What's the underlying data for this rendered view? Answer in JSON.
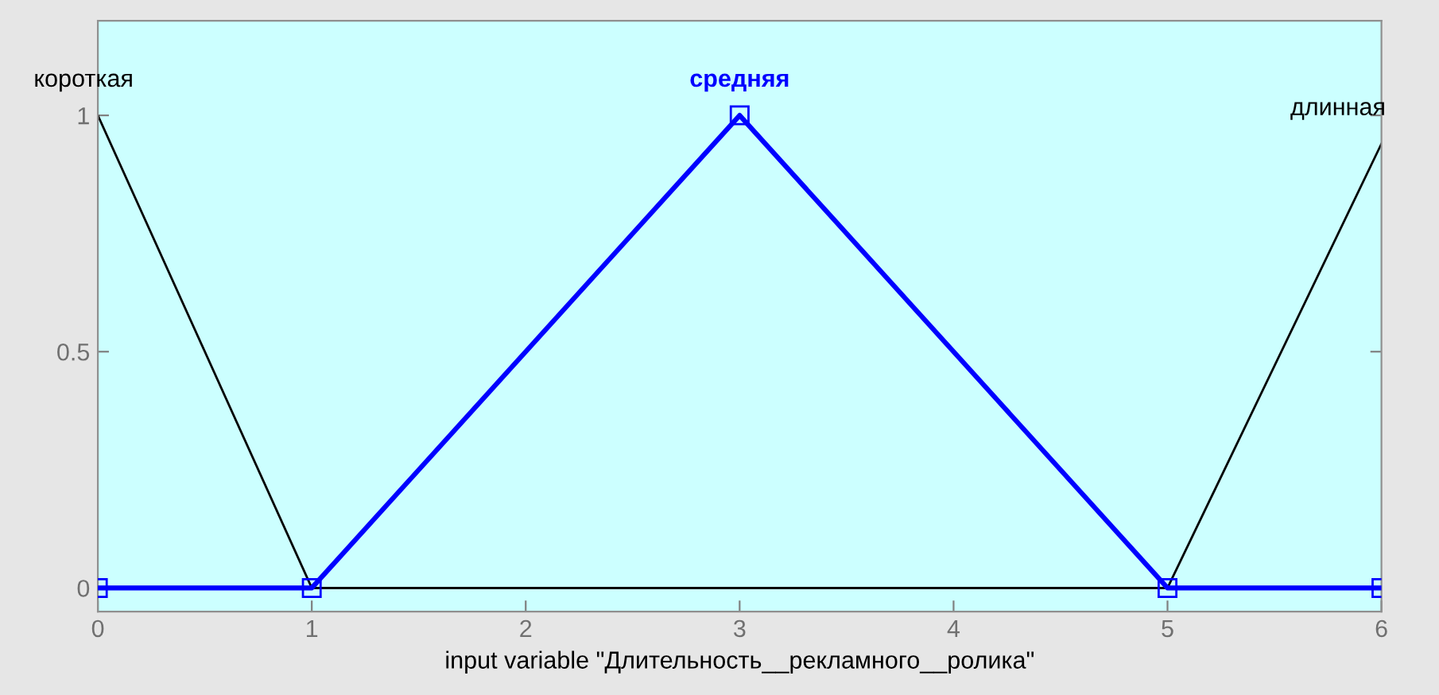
{
  "chart_data": {
    "type": "line",
    "xlabel": "input variable \"Длительность__рекламного__ролика\"",
    "xlim": [
      0,
      6
    ],
    "ylim": [
      -0.05,
      1.2
    ],
    "xticks": [
      0,
      1,
      2,
      3,
      4,
      5,
      6
    ],
    "yticks": [
      0,
      0.5,
      1
    ],
    "grid": false,
    "legend": false,
    "line_style": "solid",
    "series": [
      {
        "name": "короткая",
        "color": "#000000",
        "x": [
          0,
          1,
          6
        ],
        "values": [
          1,
          0,
          0
        ]
      },
      {
        "name": "средняя",
        "color": "#0000ff",
        "x": [
          0,
          1,
          3,
          5,
          6
        ],
        "values": [
          0,
          0,
          1,
          0,
          0
        ],
        "marker": "square"
      },
      {
        "name": "длинная",
        "color": "#000000",
        "x": [
          0,
          5,
          6
        ],
        "values": [
          0,
          0,
          0.94
        ]
      }
    ]
  }
}
